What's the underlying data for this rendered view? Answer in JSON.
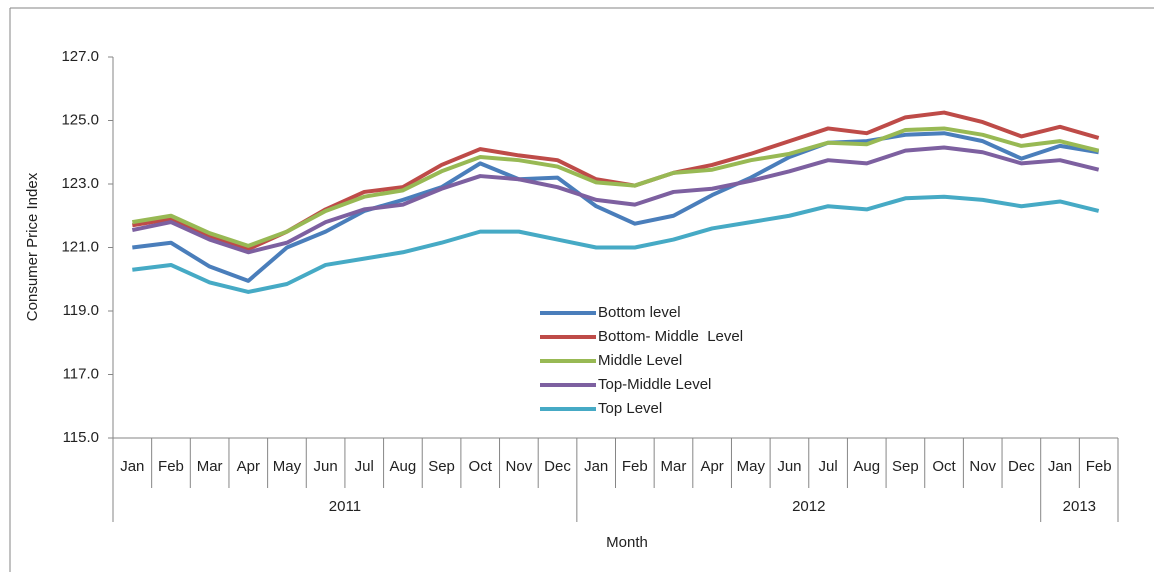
{
  "chart_data": {
    "type": "line",
    "y_label": "Consumer Price Index",
    "x_label": "Month",
    "category_groups": [
      {
        "name": "2011",
        "categories": [
          "Jan",
          "Feb",
          "Mar",
          "Apr",
          "May",
          "Jun",
          "Jul",
          "Aug",
          "Sep",
          "Oct",
          "Nov",
          "Dec"
        ]
      },
      {
        "name": "2012",
        "categories": [
          "Jan",
          "Feb",
          "Mar",
          "Apr",
          "May",
          "Jun",
          "Jul",
          "Aug",
          "Sep",
          "Oct",
          "Nov",
          "Dec"
        ]
      },
      {
        "name": "2013",
        "categories": [
          "Jan",
          "Feb"
        ]
      }
    ],
    "ylim": [
      115,
      127
    ],
    "yticks": [
      {
        "value": 115,
        "label": "115.0"
      },
      {
        "value": 117,
        "label": "117.0"
      },
      {
        "value": 119,
        "label": "119.0"
      },
      {
        "value": 121,
        "label": "121.0"
      },
      {
        "value": 123,
        "label": "123.0"
      },
      {
        "value": 125,
        "label": "125.0"
      },
      {
        "value": 127,
        "label": "127.0"
      }
    ],
    "grid": false,
    "legend": "center",
    "series": [
      {
        "name": "Bottom level",
        "color": "#4a7ebb",
        "values": [
          121.0,
          121.15,
          120.4,
          119.95,
          121.0,
          121.5,
          122.15,
          122.5,
          122.9,
          123.65,
          123.15,
          123.2,
          122.3,
          121.75,
          122.0,
          122.65,
          123.2,
          123.85,
          124.3,
          124.35,
          124.55,
          124.6,
          124.35,
          123.8,
          124.2,
          124.0
        ]
      },
      {
        "name": "Bottom- Middle  Level",
        "color": "#be4b48",
        "values": [
          121.7,
          121.9,
          121.35,
          120.95,
          121.5,
          122.2,
          122.75,
          122.9,
          123.6,
          124.1,
          123.9,
          123.75,
          123.15,
          122.95,
          123.35,
          123.6,
          123.95,
          124.35,
          124.75,
          124.6,
          125.1,
          125.25,
          124.95,
          124.5,
          124.8,
          124.45
        ]
      },
      {
        "name": "Middle Level",
        "color": "#98b954",
        "values": [
          121.8,
          122.0,
          121.45,
          121.05,
          121.5,
          122.15,
          122.6,
          122.8,
          123.4,
          123.85,
          123.75,
          123.55,
          123.05,
          122.95,
          123.35,
          123.45,
          123.75,
          123.95,
          124.3,
          124.25,
          124.7,
          124.75,
          124.55,
          124.2,
          124.35,
          124.05
        ]
      },
      {
        "name": "Top-Middle Level",
        "color": "#7d60a0",
        "values": [
          121.55,
          121.8,
          121.25,
          120.85,
          121.15,
          121.8,
          122.2,
          122.35,
          122.85,
          123.25,
          123.15,
          122.9,
          122.5,
          122.35,
          122.75,
          122.85,
          123.1,
          123.4,
          123.75,
          123.65,
          124.05,
          124.15,
          124.0,
          123.65,
          123.75,
          123.45
        ]
      },
      {
        "name": "Top Level",
        "color": "#46aac5",
        "values": [
          120.3,
          120.45,
          119.9,
          119.6,
          119.85,
          120.45,
          120.65,
          120.85,
          121.15,
          121.5,
          121.5,
          121.25,
          121.0,
          121.0,
          121.25,
          121.6,
          121.8,
          122.0,
          122.3,
          122.2,
          122.55,
          122.6,
          122.5,
          122.3,
          122.45,
          122.15
        ]
      }
    ]
  }
}
